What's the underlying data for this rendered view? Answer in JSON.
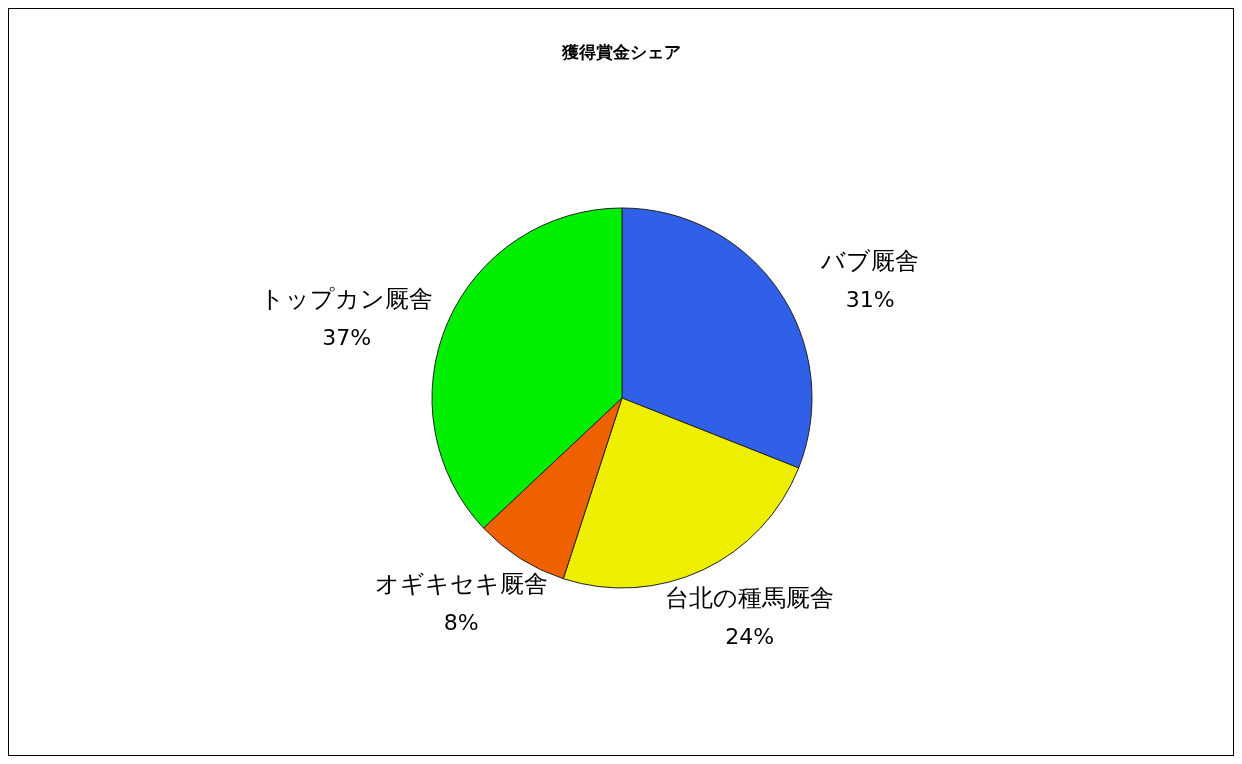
{
  "chart_data": {
    "type": "pie",
    "title": "獲得賞金シェア",
    "categories": [
      "バブ厩舎",
      "台北の種馬厩舎",
      "オギキセキ厩舎",
      "トップカン厩舎"
    ],
    "values": [
      31,
      24,
      8,
      37
    ],
    "value_labels": [
      "31%",
      "24%",
      "8%",
      "37%"
    ],
    "colors": [
      "#3060e8",
      "#eeee00",
      "#ee6000",
      "#00ee00"
    ]
  }
}
